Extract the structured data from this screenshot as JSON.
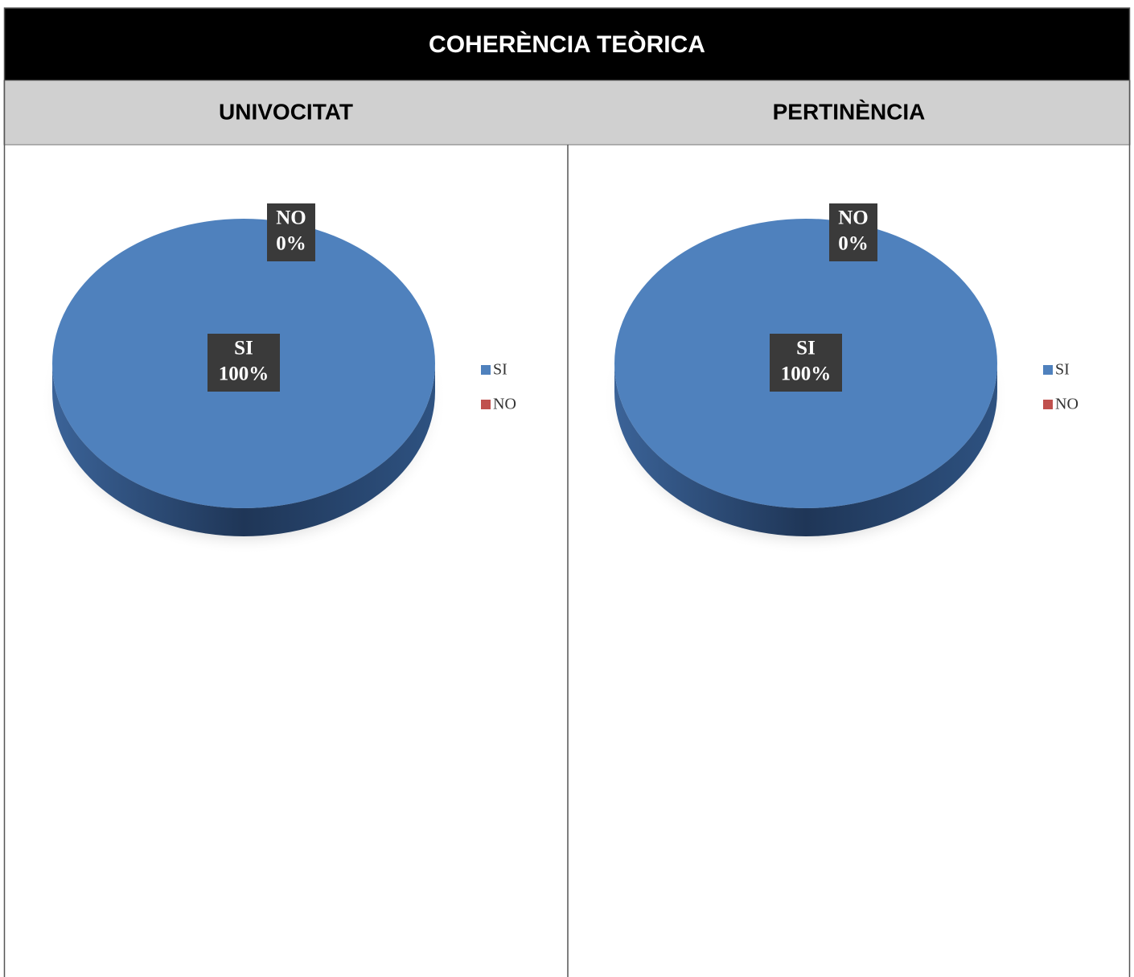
{
  "title": "COHERÈNCIA TEÒRICA",
  "chart_data": [
    {
      "type": "pie",
      "title": "UNIVOCITAT",
      "categories": [
        "SI",
        "NO"
      ],
      "values": [
        100,
        0
      ],
      "value_labels": [
        "100%",
        "0%"
      ],
      "colors": [
        "#4f81bd",
        "#c0504d"
      ]
    },
    {
      "type": "pie",
      "title": "PERTINÈNCIA",
      "categories": [
        "SI",
        "NO"
      ],
      "values": [
        100,
        0
      ],
      "value_labels": [
        "100%",
        "0%"
      ],
      "colors": [
        "#4f81bd",
        "#c0504d"
      ]
    }
  ]
}
